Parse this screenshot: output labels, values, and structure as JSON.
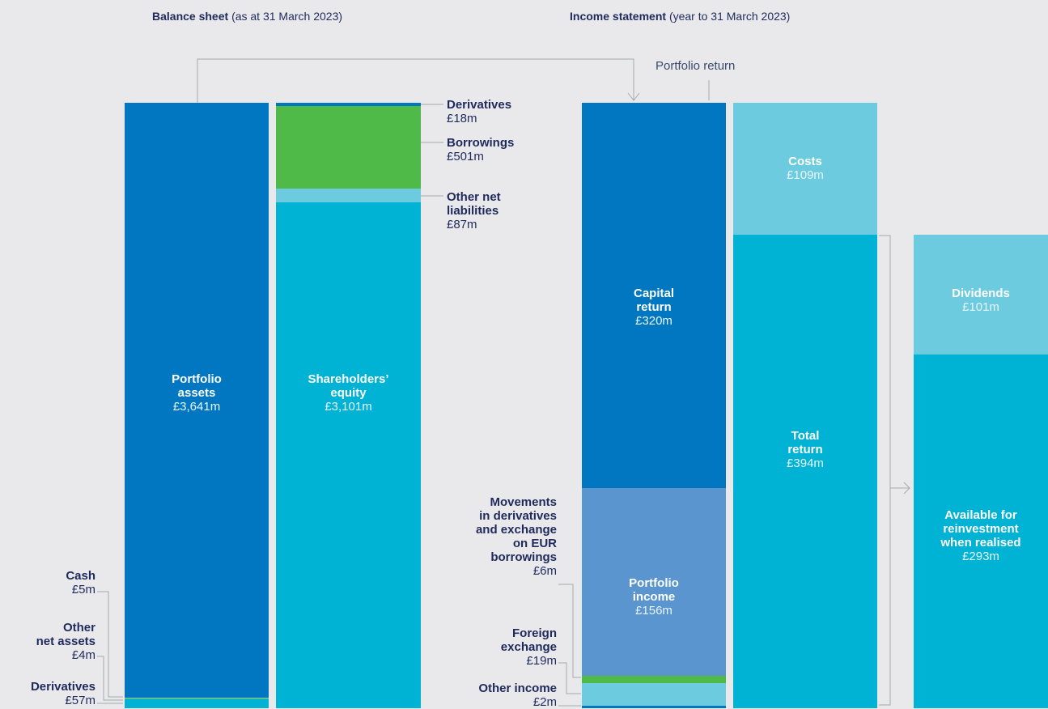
{
  "headers": {
    "balance_title": "Balance sheet",
    "balance_sub": "(as at 31 March 2023)",
    "income_title": "Income statement",
    "income_sub": "(year to 31 March 2023)"
  },
  "portfolio_return_label": "Portfolio return",
  "colors": {
    "dark_blue": "#0077c0",
    "cyan": "#00b2d3",
    "light_cyan": "#6dcbe0",
    "green": "#4fba48",
    "mid_blue": "#5b95cf",
    "text": "#1f2a5c"
  },
  "chart_data": {
    "type": "bar",
    "unit": "£m",
    "columns": [
      {
        "id": "assets",
        "segments": [
          {
            "name": "Portfolio assets",
            "value": 3641,
            "label": "£3,641m"
          },
          {
            "name": "Cash",
            "value": 5,
            "label": "£5m"
          },
          {
            "name": "Other net assets",
            "value": 4,
            "label": "£4m"
          },
          {
            "name": "Derivatives",
            "value": 57,
            "label": "£57m"
          }
        ]
      },
      {
        "id": "liabilities",
        "segments": [
          {
            "name": "Derivatives",
            "value": 18,
            "label": "£18m"
          },
          {
            "name": "Borrowings",
            "value": 501,
            "label": "£501m"
          },
          {
            "name": "Other net liabilities",
            "value": 87,
            "label": "£87m"
          },
          {
            "name": "Shareholders’ equity",
            "value": 3101,
            "label": "£3,101m"
          }
        ]
      },
      {
        "id": "portfolio_return",
        "segments": [
          {
            "name": "Capital return",
            "value": 320,
            "label": "£320m"
          },
          {
            "name": "Portfolio income",
            "value": 156,
            "label": "£156m"
          },
          {
            "name": "Foreign exchange",
            "value": 19,
            "label": "£19m"
          },
          {
            "name": "Movements in derivatives and exchange on EUR borrowings",
            "value": 6,
            "label": "£6m"
          },
          {
            "name": "Other income",
            "value": 2,
            "label": "£2m"
          }
        ]
      },
      {
        "id": "total_return",
        "segments": [
          {
            "name": "Costs",
            "value": 109,
            "label": "£109m"
          },
          {
            "name": "Total return",
            "value": 394,
            "label": "£394m"
          }
        ]
      },
      {
        "id": "allocation",
        "segments": [
          {
            "name": "Dividends",
            "value": 101,
            "label": "£101m"
          },
          {
            "name": "Available for reinvestment when realised",
            "value": 293,
            "label": "£293m"
          }
        ]
      }
    ]
  },
  "labels": {
    "portfolio_assets": {
      "t1": "Portfolio",
      "t2": "assets",
      "v": "£3,641m"
    },
    "shareholders_equity": {
      "t1": "Shareholders’",
      "t2": "equity",
      "v": "£3,101m"
    },
    "derivatives_liab": {
      "t": "Derivatives",
      "v": "£18m"
    },
    "borrowings": {
      "t": "Borrowings",
      "v": "£501m"
    },
    "other_net_liabilities": {
      "t1": "Other net",
      "t2": "liabilities",
      "v": "£87m"
    },
    "cash": {
      "t": "Cash",
      "v": "£5m"
    },
    "other_net_assets": {
      "t1": "Other",
      "t2": "net assets",
      "v": "£4m"
    },
    "derivatives_asset": {
      "t": "Derivatives",
      "v": "£57m"
    },
    "capital_return": {
      "t1": "Capital",
      "t2": "return",
      "v": "£320m"
    },
    "portfolio_income": {
      "t1": "Portfolio",
      "t2": "income",
      "v": "£156m"
    },
    "movements": {
      "t1": "Movements",
      "t2": "in derivatives",
      "t3": "and exchange",
      "t4": "on EUR",
      "t5": "borrowings",
      "v": "£6m"
    },
    "foreign_exchange": {
      "t1": "Foreign",
      "t2": "exchange",
      "v": "£19m"
    },
    "other_income": {
      "t": "Other income",
      "v": "£2m"
    },
    "costs": {
      "t": "Costs",
      "v": "£109m"
    },
    "total_return": {
      "t1": "Total",
      "t2": "return",
      "v": "£394m"
    },
    "dividends": {
      "t": "Dividends",
      "v": "£101m"
    },
    "available": {
      "t1": "Available for",
      "t2": "reinvestment",
      "t3": "when realised",
      "v": "£293m"
    }
  }
}
